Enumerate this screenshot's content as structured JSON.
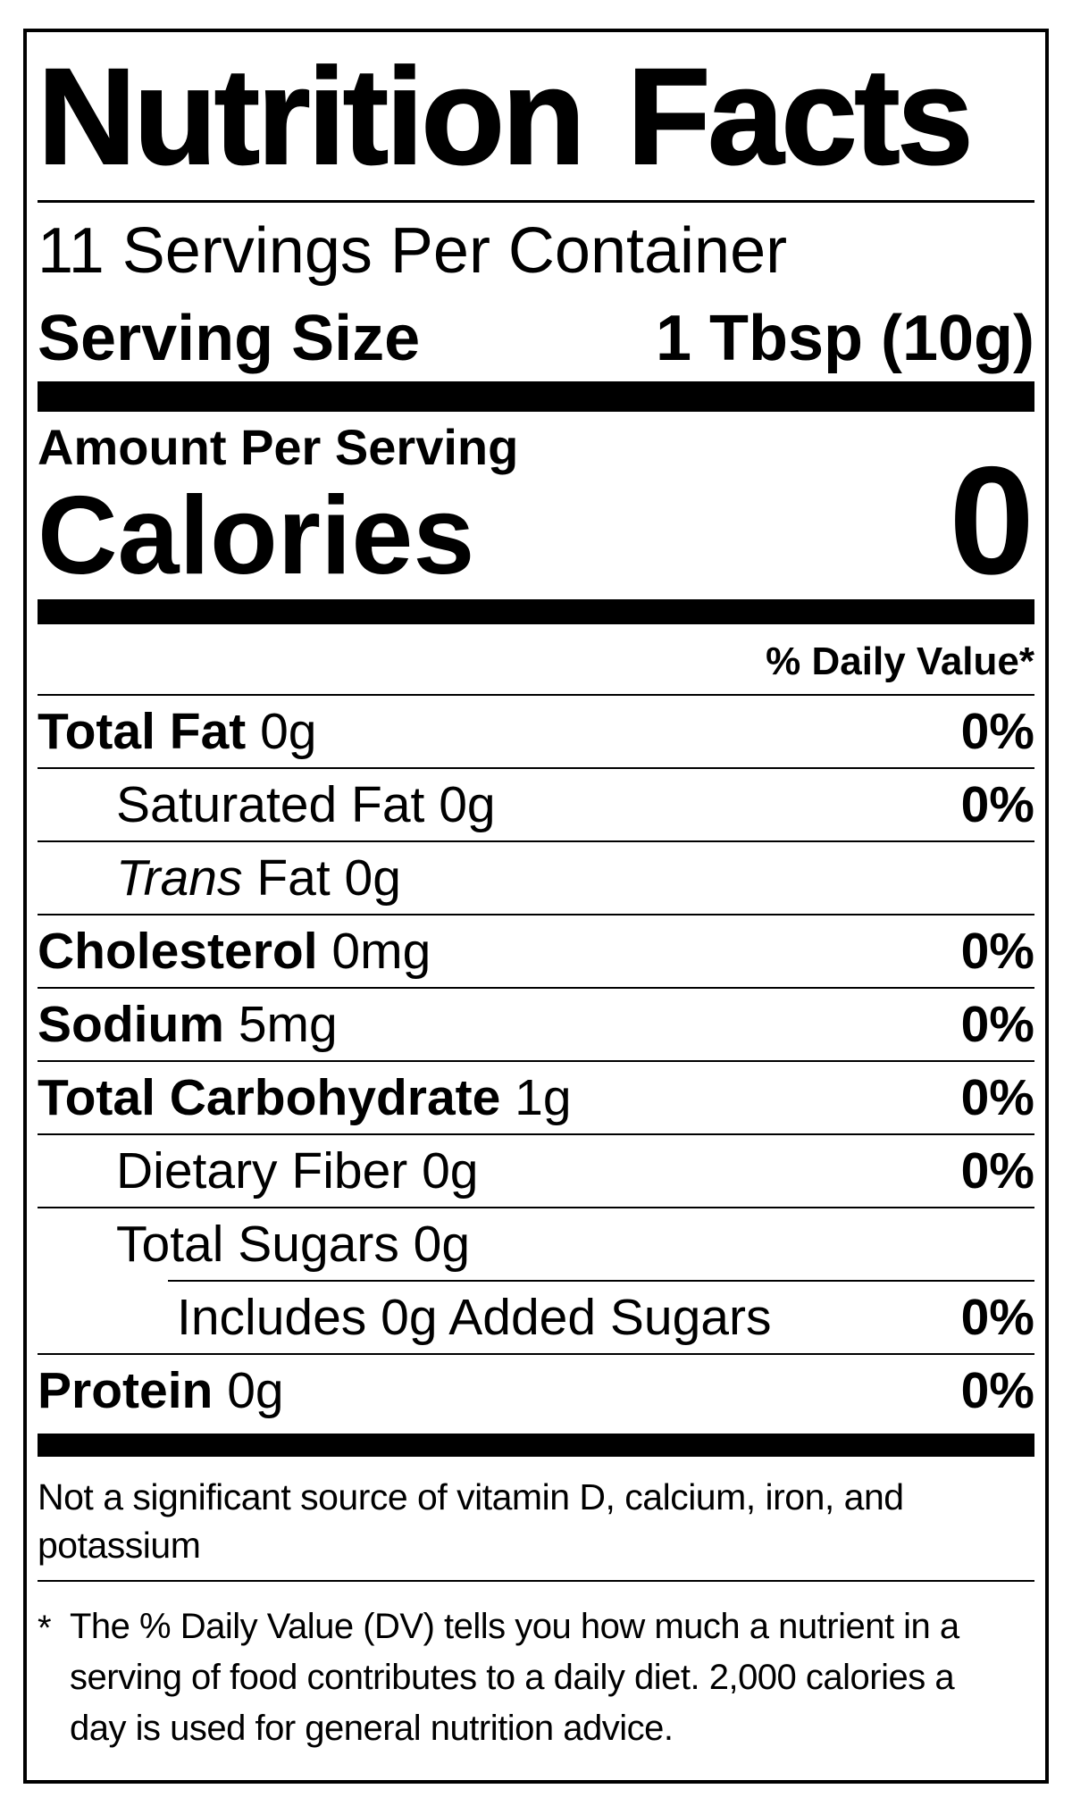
{
  "colors": {
    "ink": "#000000",
    "paper": "#ffffff"
  },
  "label": {
    "title": "Nutrition Facts",
    "servings_per_container": "11 Servings Per Container",
    "serving_size": {
      "label": "Serving Size",
      "value": "1 Tbsp (10g)"
    },
    "amount_per_serving": "Amount Per Serving",
    "calories": {
      "label": "Calories",
      "value": "0"
    },
    "daily_value_header": "% Daily Value*",
    "nutrient_rows": [
      {
        "lead": "Total Fat",
        "lead_style": "bold",
        "rest": "0g",
        "dv": "0%",
        "indent": 0,
        "rule_indented": false
      },
      {
        "lead": "Saturated Fat",
        "lead_style": "regular",
        "rest": "0g",
        "dv": "0%",
        "indent": 1,
        "rule_indented": false
      },
      {
        "lead": "Trans",
        "lead_style": "italic",
        "rest": "Fat 0g",
        "dv": "",
        "indent": 1,
        "rule_indented": false
      },
      {
        "lead": "Cholesterol",
        "lead_style": "bold",
        "rest": "0mg",
        "dv": "0%",
        "indent": 0,
        "rule_indented": false
      },
      {
        "lead": "Sodium",
        "lead_style": "bold",
        "rest": "5mg",
        "dv": "0%",
        "indent": 0,
        "rule_indented": false
      },
      {
        "lead": "Total Carbohydrate",
        "lead_style": "bold",
        "rest": "1g",
        "dv": "0%",
        "indent": 0,
        "rule_indented": false
      },
      {
        "lead": "Dietary Fiber",
        "lead_style": "regular",
        "rest": "0g",
        "dv": "0%",
        "indent": 1,
        "rule_indented": false
      },
      {
        "lead": "Total Sugars",
        "lead_style": "regular",
        "rest": "0g",
        "dv": "",
        "indent": 1,
        "rule_indented": false
      },
      {
        "lead": "Includes 0g Added Sugars",
        "lead_style": "regular",
        "rest": "",
        "dv": "0%",
        "indent": 2,
        "rule_indented": true
      },
      {
        "lead": "Protein",
        "lead_style": "bold",
        "rest": "0g",
        "dv": "0%",
        "indent": 0,
        "rule_indented": false
      }
    ],
    "not_significant_lines": [
      "Not a significant source of vitamin D, calcium, iron, and",
      "potassium"
    ],
    "footnote_marker": "*",
    "footnote_lines": [
      "The % Daily Value (DV) tells you how much a nutrient in a",
      "serving of food contributes to a daily diet. 2,000 calories a",
      "day is used for general nutrition advice."
    ]
  }
}
